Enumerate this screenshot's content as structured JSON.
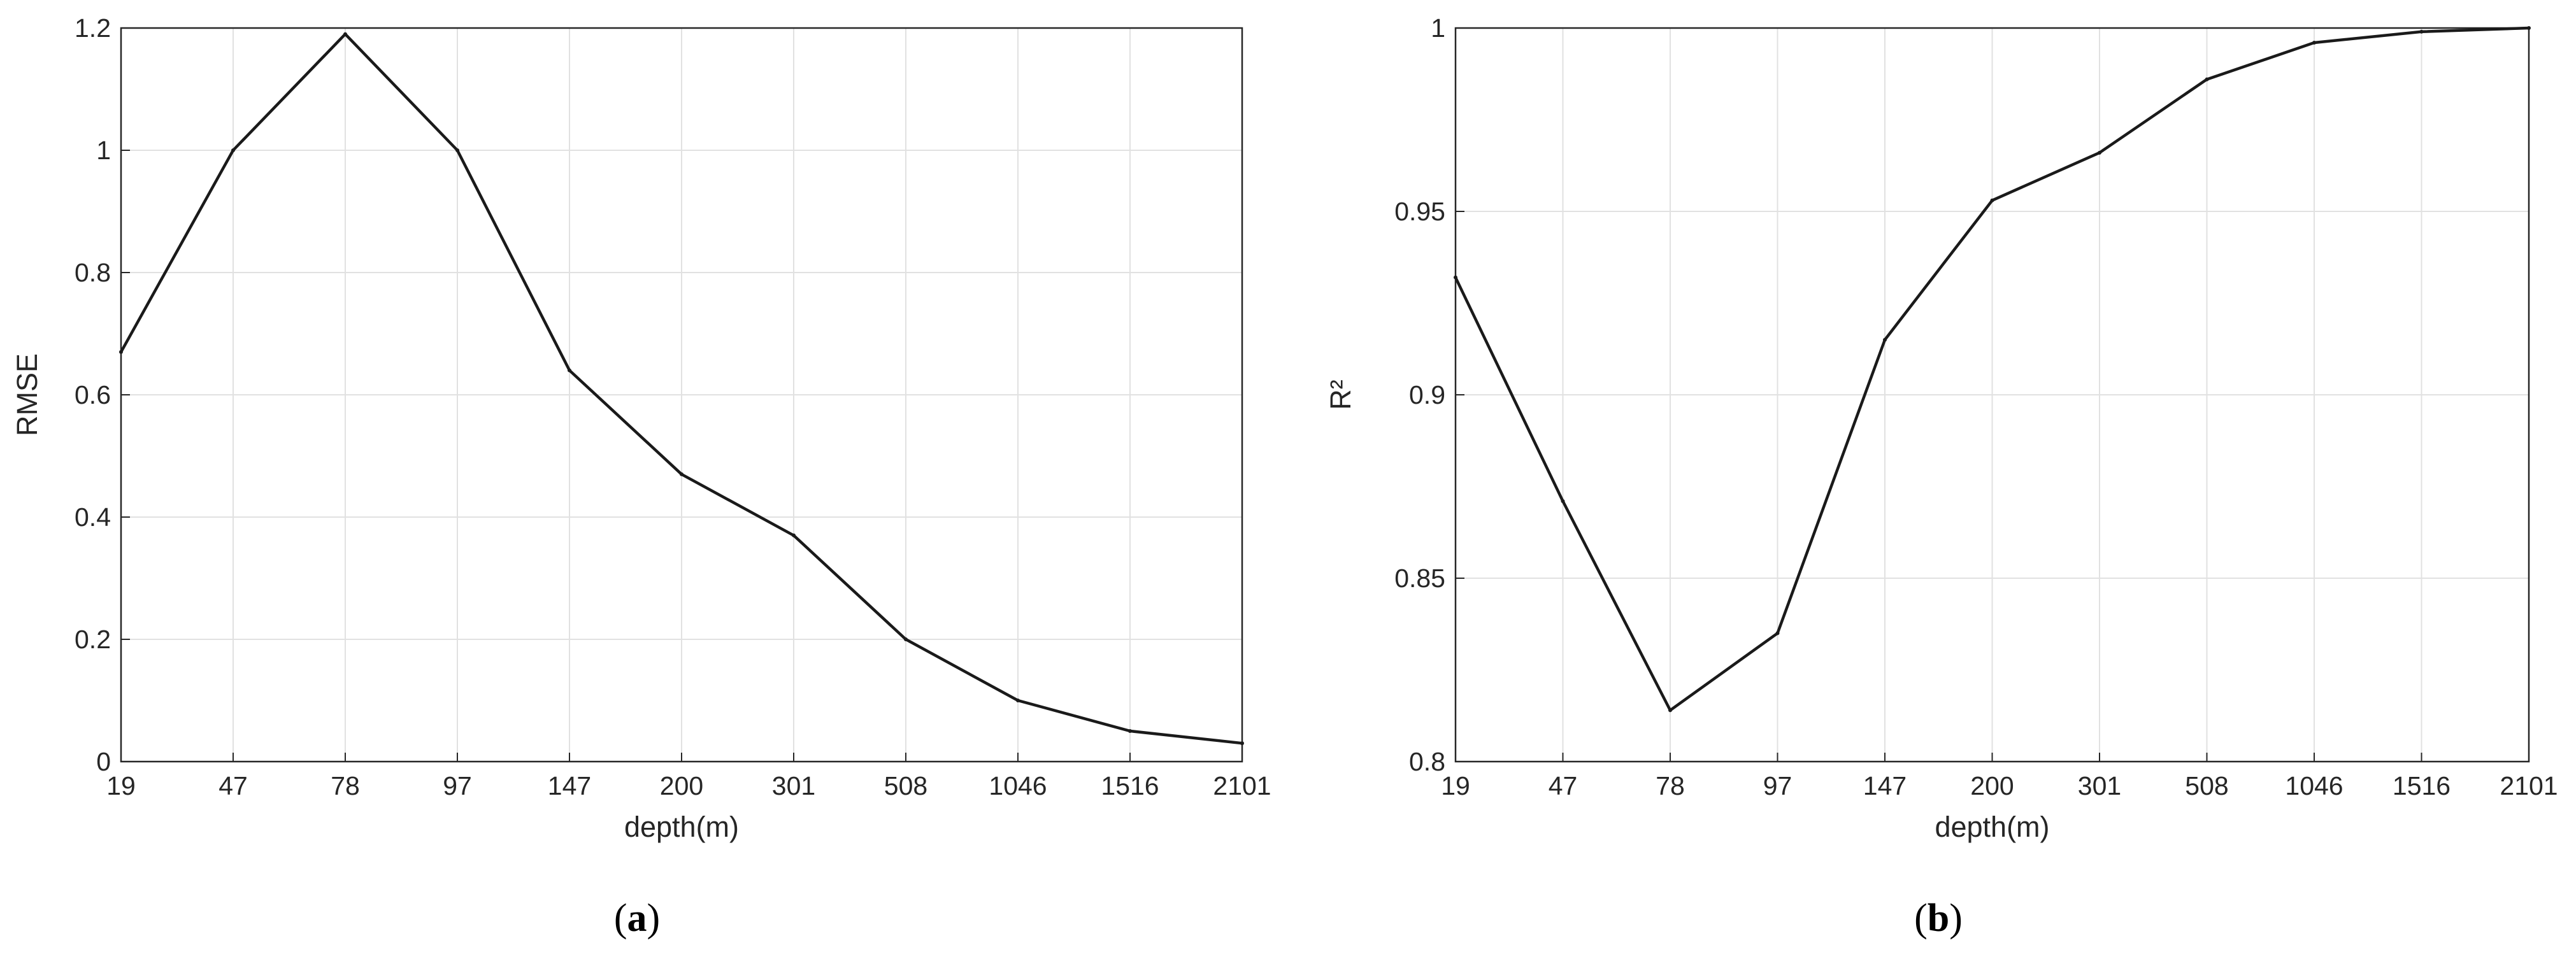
{
  "chart_data": [
    {
      "type": "line",
      "panel_letter": "a",
      "categories": [
        "19",
        "47",
        "78",
        "97",
        "147",
        "200",
        "301",
        "508",
        "1046",
        "1516",
        "2101"
      ],
      "values": [
        0.67,
        1.0,
        1.19,
        1.0,
        0.64,
        0.47,
        0.37,
        0.2,
        0.1,
        0.05,
        0.03
      ],
      "xlabel": "depth(m)",
      "ylabel": "RMSE",
      "ylim": [
        0,
        1.2
      ],
      "yticks": [
        "0",
        "0.2",
        "0.4",
        "0.6",
        "0.8",
        "1",
        "1.2"
      ],
      "grid": true,
      "line_color": "#1a1a1a"
    },
    {
      "type": "line",
      "panel_letter": "b",
      "categories": [
        "19",
        "47",
        "78",
        "97",
        "147",
        "200",
        "301",
        "508",
        "1046",
        "1516",
        "2101"
      ],
      "values": [
        0.932,
        0.871,
        0.814,
        0.835,
        0.915,
        0.953,
        0.966,
        0.986,
        0.996,
        0.999,
        1.0
      ],
      "xlabel": "depth(m)",
      "ylabel": "R²",
      "ylim": [
        0.8,
        1.0
      ],
      "yticks": [
        "0.8",
        "0.85",
        "0.9",
        "0.95",
        "1"
      ],
      "grid": true,
      "line_color": "#1a1a1a"
    }
  ]
}
